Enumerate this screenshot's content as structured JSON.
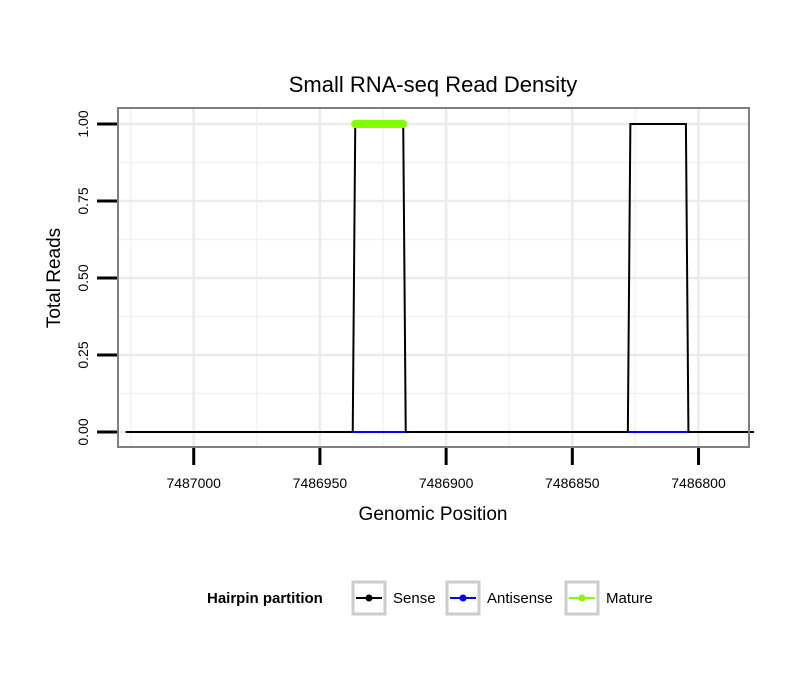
{
  "chart_data": {
    "type": "line",
    "title": "Small RNA-seq Read Density",
    "xlabel": "Genomic Position",
    "ylabel": "Total Reads",
    "x_reversed": true,
    "xlim": [
      7487030,
      7486780
    ],
    "ylim": [
      0,
      1.0
    ],
    "x_ticks": [
      7487000,
      7486950,
      7486900,
      7486850,
      7486800
    ],
    "x_tick_labels": [
      "7487000",
      "7486950",
      "7486900",
      "7486850",
      "7486800"
    ],
    "y_ticks": [
      0,
      0.25,
      0.5,
      0.75,
      1.0
    ],
    "y_tick_labels": [
      "0.00",
      "0.25",
      "0.50",
      "0.75",
      "1.00"
    ],
    "grid": true,
    "series": [
      {
        "name": "Sense",
        "color": "#000000",
        "x": [
          7487027,
          7486937,
          7486936,
          7486917,
          7486916,
          7486828,
          7486827,
          7486805,
          7486804,
          7486778
        ],
        "values": [
          0,
          0,
          1,
          1,
          0,
          0,
          1,
          1,
          0,
          0
        ]
      },
      {
        "name": "Antisense",
        "color": "#0000ff",
        "x": [
          7486937,
          7486916
        ],
        "values": [
          0,
          0
        ]
      },
      {
        "name": "Antisense",
        "color": "#0000ff",
        "x": [
          7486828,
          7486804
        ],
        "values": [
          0,
          0
        ]
      },
      {
        "name": "Mature",
        "color": "#7fff00",
        "x": [
          7486936,
          7486917
        ],
        "values": [
          1,
          1
        ]
      }
    ],
    "legend": {
      "title": "Hairpin partition",
      "position": "bottom",
      "entries": [
        {
          "label": "Sense",
          "color": "#000000"
        },
        {
          "label": "Antisense",
          "color": "#0000ff"
        },
        {
          "label": "Mature",
          "color": "#7fff00"
        }
      ]
    }
  }
}
